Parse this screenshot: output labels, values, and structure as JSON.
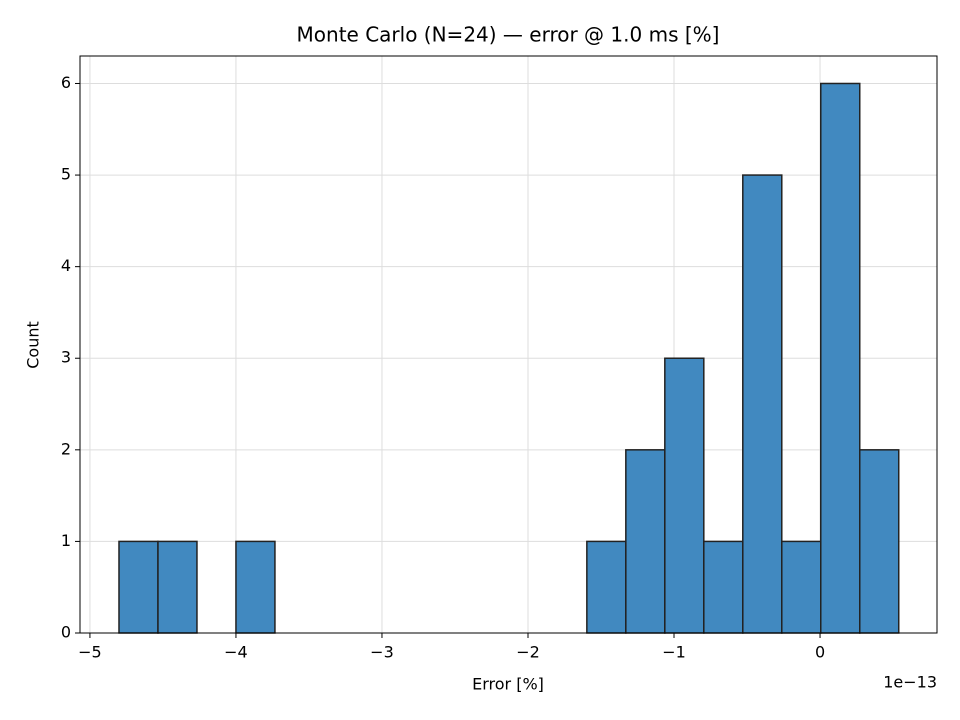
{
  "chart_data": {
    "type": "histogram",
    "title": "Monte Carlo (N=24) — error @ 1.0 ms [%]",
    "xlabel": "Error [%]",
    "ylabel": "Count",
    "x_offset_text": "1e−13",
    "bins": [
      -4.801,
      -4.534,
      -4.267,
      -4.0,
      -3.733,
      -3.466,
      -3.199,
      -2.932,
      -2.665,
      -2.398,
      -2.131,
      -1.864,
      -1.597,
      -1.33,
      -1.063,
      -0.796,
      -0.529,
      -0.262,
      0.005,
      0.272,
      0.539
    ],
    "counts": [
      1,
      1,
      0,
      1,
      0,
      0,
      0,
      0,
      0,
      0,
      0,
      0,
      1,
      2,
      3,
      1,
      5,
      1,
      6,
      2
    ],
    "color": "#4189c0",
    "edgecolor": "#222222",
    "xlim": [
      -5.068,
      0.801
    ],
    "ylim": [
      0,
      6.3
    ],
    "xticks": [
      {
        "value": -5,
        "label": "−5"
      },
      {
        "value": -4,
        "label": "−4"
      },
      {
        "value": -3,
        "label": "−3"
      },
      {
        "value": -2,
        "label": "−2"
      },
      {
        "value": -1,
        "label": "−1"
      },
      0
    ],
    "yticks": [
      0,
      1,
      2,
      3,
      4,
      5,
      6
    ],
    "grid": true
  }
}
